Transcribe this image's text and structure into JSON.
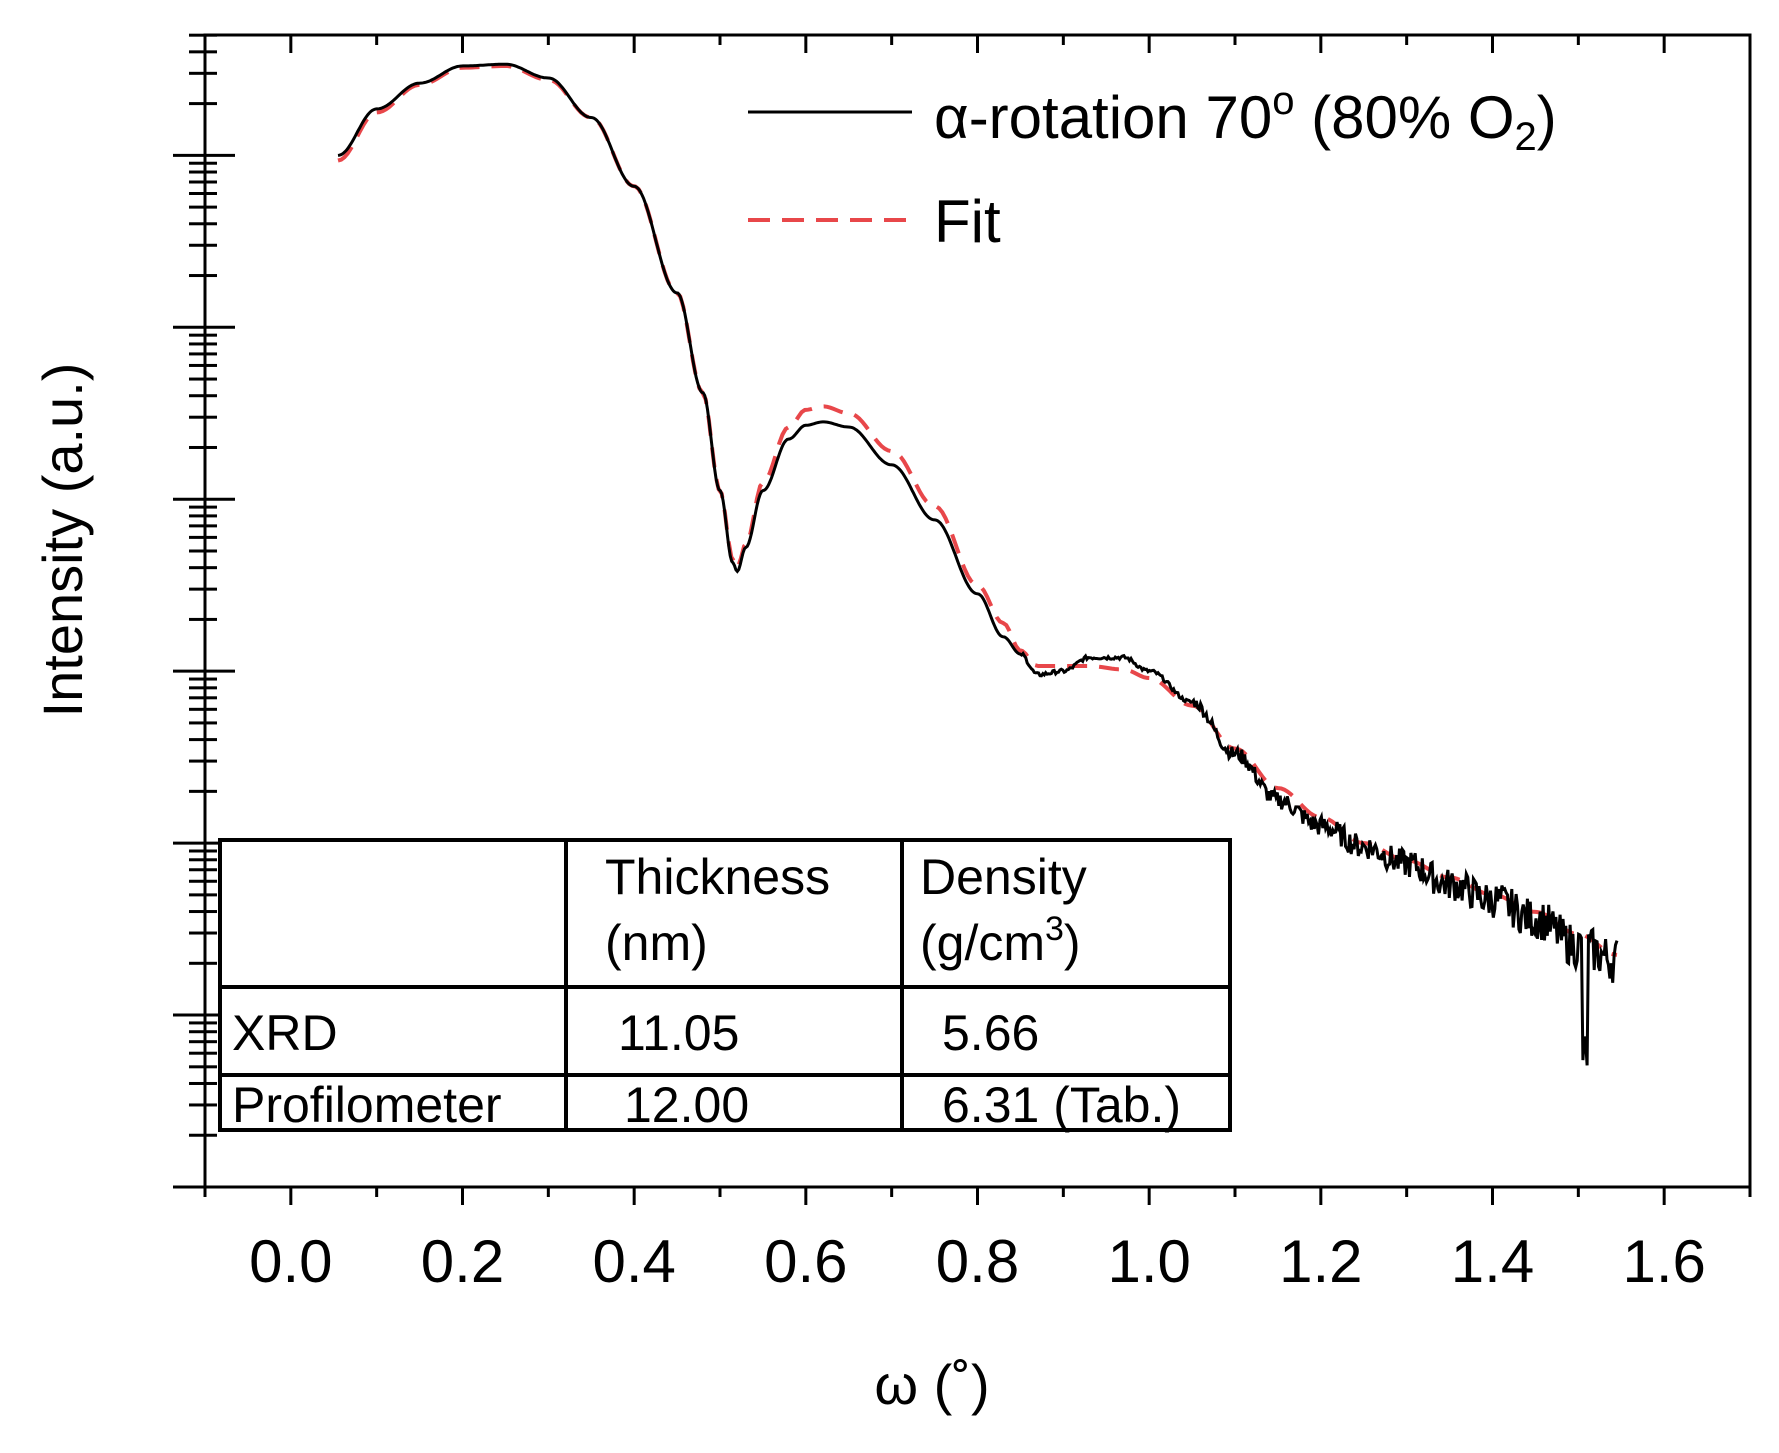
{
  "chart_data": {
    "type": "line",
    "title": "",
    "xlabel": "ω (˚)",
    "ylabel": "Intensity (a.u.)",
    "xlim": [
      -0.1,
      1.7
    ],
    "ylim_decades": [
      0,
      6.7
    ],
    "yscale": "log",
    "y_tick_labels_shown": false,
    "xticks": [
      0.0,
      0.2,
      0.4,
      0.6,
      0.8,
      1.0,
      1.2,
      1.4,
      1.6
    ],
    "xtick_labels": [
      "0.0",
      "0.2",
      "0.4",
      "0.6",
      "0.8",
      "1.0",
      "1.2",
      "1.4",
      "1.6"
    ],
    "series": [
      {
        "name": "α-rotation 70o (80% O2)",
        "name_parts": {
          "base": "α-rotation 70",
          "sup": "o",
          "mid": " (80% O",
          "sub": "2",
          "end": ")"
        },
        "style": "solid",
        "color": "#000000",
        "noisy": true,
        "x": [
          0.055,
          0.1,
          0.15,
          0.2,
          0.25,
          0.3,
          0.35,
          0.4,
          0.45,
          0.48,
          0.5,
          0.515,
          0.52,
          0.53,
          0.55,
          0.58,
          0.6,
          0.62,
          0.65,
          0.7,
          0.75,
          0.8,
          0.83,
          0.85,
          0.87,
          0.9,
          0.93,
          0.97,
          1.0,
          1.05,
          1.1,
          1.15,
          1.2,
          1.25,
          1.3,
          1.35,
          1.4,
          1.45,
          1.5,
          1.545
        ],
        "y": [
          6.0,
          6.27,
          6.42,
          6.52,
          6.53,
          6.45,
          6.22,
          5.82,
          5.2,
          4.62,
          4.05,
          3.63,
          3.58,
          3.72,
          4.05,
          4.35,
          4.43,
          4.45,
          4.42,
          4.2,
          3.88,
          3.45,
          3.2,
          3.1,
          2.98,
          3.0,
          3.08,
          3.08,
          3.0,
          2.82,
          2.52,
          2.25,
          2.1,
          1.98,
          1.88,
          1.76,
          1.67,
          1.56,
          1.4,
          1.32
        ]
      },
      {
        "name": "Fit",
        "style": "dashed",
        "color": "#e8474a",
        "noisy": false,
        "x": [
          0.055,
          0.1,
          0.15,
          0.2,
          0.25,
          0.3,
          0.35,
          0.4,
          0.45,
          0.48,
          0.5,
          0.515,
          0.52,
          0.53,
          0.55,
          0.58,
          0.6,
          0.62,
          0.65,
          0.7,
          0.75,
          0.8,
          0.83,
          0.85,
          0.87,
          0.9,
          0.93,
          0.97,
          1.0,
          1.05,
          1.1,
          1.15,
          1.2,
          1.25,
          1.3,
          1.35,
          1.4,
          1.45,
          1.5,
          1.545
        ],
        "y": [
          5.97,
          6.25,
          6.41,
          6.51,
          6.52,
          6.44,
          6.22,
          5.82,
          5.2,
          4.62,
          4.05,
          3.65,
          3.6,
          3.74,
          4.1,
          4.42,
          4.52,
          4.54,
          4.5,
          4.28,
          3.96,
          3.5,
          3.28,
          3.12,
          3.03,
          3.03,
          3.03,
          3.01,
          2.96,
          2.8,
          2.55,
          2.32,
          2.15,
          2.0,
          1.9,
          1.8,
          1.7,
          1.6,
          1.47,
          1.35
        ]
      }
    ],
    "legend": {
      "position": "top-right"
    },
    "table": {
      "headers": [
        "",
        "Thickness (nm)",
        "Density (g/cm3)"
      ],
      "header_lines": [
        [
          "",
          ""
        ],
        [
          "Thickness",
          "(nm)"
        ],
        [
          "Density",
          "(g/cm"
        ]
      ],
      "density_unit_sup": "3",
      "density_unit_end": ")",
      "rows": [
        [
          "XRD",
          "11.05",
          "5.66"
        ],
        [
          "Profilometer",
          "12.00",
          "6.31 (Tab.)"
        ]
      ]
    }
  }
}
